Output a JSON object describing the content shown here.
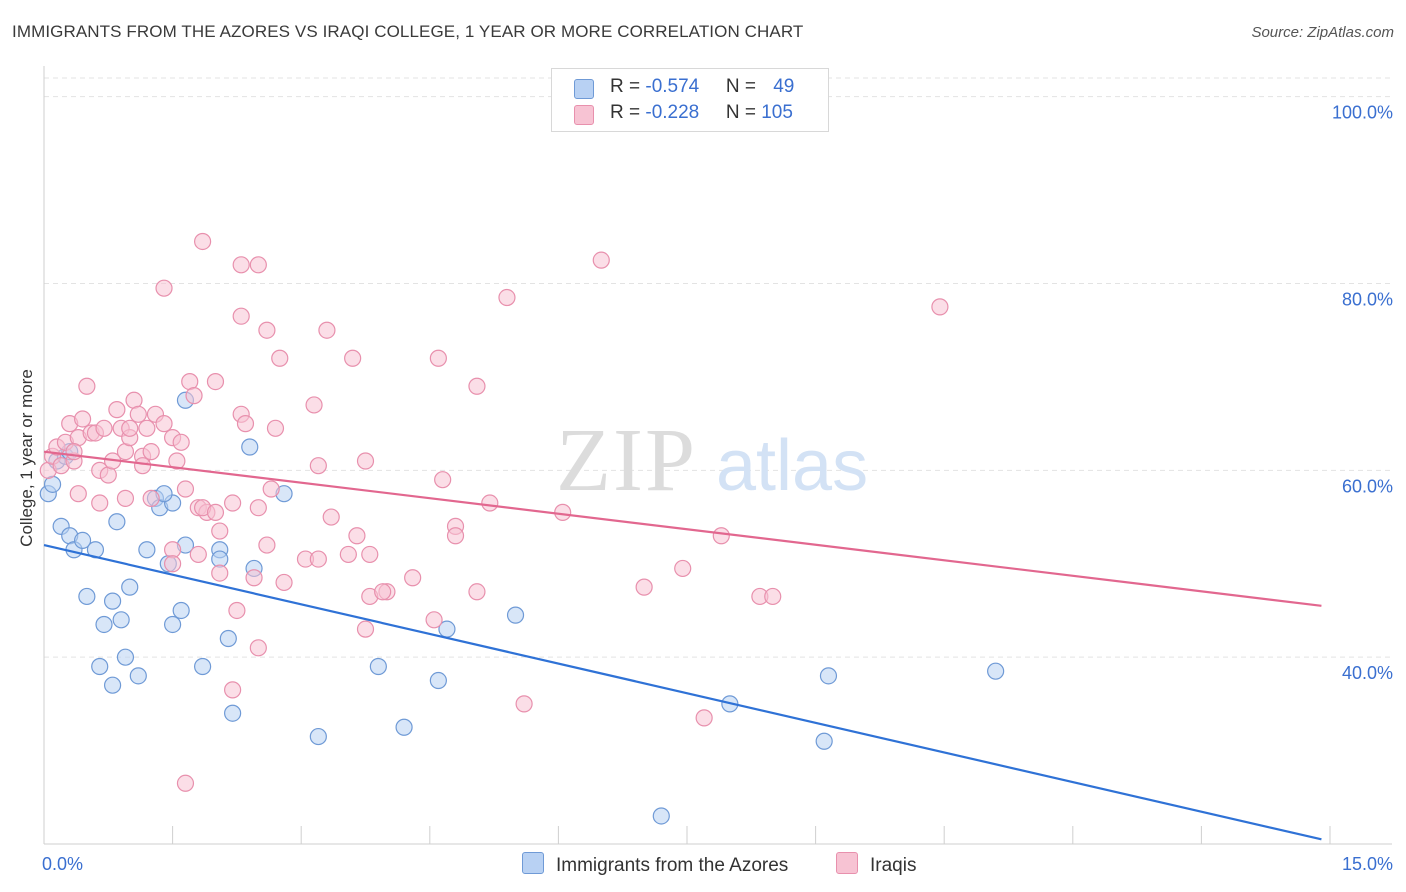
{
  "header": {
    "title": "IMMIGRANTS FROM THE AZORES VS IRAQI COLLEGE, 1 YEAR OR MORE CORRELATION CHART",
    "source": "Source: ZipAtlas.com"
  },
  "watermark": {
    "zip": "ZIP",
    "atlas": "atlas"
  },
  "legend_top": {
    "rows": [
      {
        "r_label": "R = ",
        "r_value": "-0.574",
        "n_label": "N = ",
        "n_value": "49"
      },
      {
        "r_label": "R = ",
        "r_value": "-0.228",
        "n_label": "N = ",
        "n_value": "105"
      }
    ]
  },
  "legend_bottom": {
    "items": [
      {
        "label": "Immigrants from the Azores"
      },
      {
        "label": "Iraqis"
      }
    ]
  },
  "colors": {
    "azores_fill": "#b8d1f3",
    "azores_stroke": "#6f9ad6",
    "azores_line": "#2f72d6",
    "iraqis_fill": "#f7c3d3",
    "iraqis_stroke": "#e890ad",
    "iraqis_line": "#e2678f",
    "axis_label": "#3a6fd0",
    "grid": "#e3e3e3"
  },
  "chart_data": {
    "type": "scatter",
    "title": "IMMIGRANTS FROM THE AZORES VS IRAQI COLLEGE, 1 YEAR OR MORE CORRELATION CHART",
    "xlabel": "",
    "ylabel": "College, 1 year or more",
    "xlim": [
      0,
      15
    ],
    "ylim": [
      20,
      102
    ],
    "x_tick_labels": [
      {
        "value": 0,
        "label": "0.0%"
      },
      {
        "value": 15,
        "label": "15.0%"
      }
    ],
    "y_tick_labels": [
      {
        "value": 40,
        "label": "40.0%"
      },
      {
        "value": 60,
        "label": "60.0%"
      },
      {
        "value": 80,
        "label": "80.0%"
      },
      {
        "value": 100,
        "label": "100.0%"
      }
    ],
    "grid": true,
    "legend_position": "bottom",
    "series": [
      {
        "name": "Immigrants from the Azores",
        "color_key": "azores",
        "trend": [
          [
            0,
            52.0
          ],
          [
            14.9,
            20.5
          ]
        ],
        "points": [
          [
            0.05,
            57.5
          ],
          [
            0.1,
            58.5
          ],
          [
            0.15,
            61.0
          ],
          [
            0.25,
            61.5
          ],
          [
            0.3,
            62.0
          ],
          [
            0.2,
            54.0
          ],
          [
            0.3,
            53.0
          ],
          [
            0.35,
            51.5
          ],
          [
            0.45,
            52.5
          ],
          [
            0.6,
            51.5
          ],
          [
            0.85,
            54.5
          ],
          [
            1.2,
            51.5
          ],
          [
            1.3,
            57.0
          ],
          [
            1.35,
            56.0
          ],
          [
            1.5,
            56.5
          ],
          [
            1.4,
            57.5
          ],
          [
            1.45,
            50.0
          ],
          [
            1.65,
            52.0
          ],
          [
            1.65,
            67.5
          ],
          [
            2.05,
            51.5
          ],
          [
            2.05,
            50.5
          ],
          [
            2.45,
            49.5
          ],
          [
            2.4,
            62.5
          ],
          [
            2.8,
            57.5
          ],
          [
            0.5,
            46.5
          ],
          [
            0.8,
            46.0
          ],
          [
            1.0,
            47.5
          ],
          [
            0.7,
            43.5
          ],
          [
            0.9,
            44.0
          ],
          [
            1.5,
            43.5
          ],
          [
            1.6,
            45.0
          ],
          [
            2.15,
            42.0
          ],
          [
            0.65,
            39.0
          ],
          [
            0.95,
            40.0
          ],
          [
            0.8,
            37.0
          ],
          [
            1.1,
            38.0
          ],
          [
            1.85,
            39.0
          ],
          [
            2.2,
            34.0
          ],
          [
            3.2,
            31.5
          ],
          [
            3.9,
            39.0
          ],
          [
            4.2,
            32.5
          ],
          [
            4.6,
            37.5
          ],
          [
            4.7,
            43.0
          ],
          [
            5.5,
            44.5
          ],
          [
            8.0,
            35.0
          ],
          [
            9.1,
            31.0
          ],
          [
            9.15,
            38.0
          ],
          [
            11.1,
            38.5
          ],
          [
            7.2,
            23.0
          ]
        ]
      },
      {
        "name": "Iraqis",
        "color_key": "iraqis",
        "trend": [
          [
            0,
            62.0
          ],
          [
            14.9,
            45.5
          ]
        ],
        "points": [
          [
            0.05,
            60.0
          ],
          [
            0.1,
            61.5
          ],
          [
            0.15,
            62.5
          ],
          [
            0.2,
            60.5
          ],
          [
            0.25,
            63.0
          ],
          [
            0.3,
            65.0
          ],
          [
            0.35,
            61.0
          ],
          [
            0.4,
            63.5
          ],
          [
            0.45,
            65.5
          ],
          [
            0.5,
            69.0
          ],
          [
            0.55,
            64.0
          ],
          [
            0.6,
            64.0
          ],
          [
            0.65,
            60.0
          ],
          [
            0.7,
            64.5
          ],
          [
            0.75,
            59.5
          ],
          [
            0.8,
            61.0
          ],
          [
            0.85,
            66.5
          ],
          [
            0.9,
            64.5
          ],
          [
            0.95,
            62.0
          ],
          [
            1.0,
            63.5
          ],
          [
            1.05,
            67.5
          ],
          [
            1.1,
            66.0
          ],
          [
            1.15,
            61.5
          ],
          [
            1.2,
            64.5
          ],
          [
            1.25,
            62.0
          ],
          [
            1.3,
            66.0
          ],
          [
            1.4,
            65.0
          ],
          [
            1.5,
            63.5
          ],
          [
            1.55,
            61.0
          ],
          [
            1.6,
            63.0
          ],
          [
            1.7,
            69.5
          ],
          [
            1.75,
            68.0
          ],
          [
            1.8,
            56.0
          ],
          [
            1.9,
            55.5
          ],
          [
            2.0,
            69.5
          ],
          [
            2.2,
            56.5
          ],
          [
            2.3,
            66.0
          ],
          [
            2.35,
            65.0
          ],
          [
            2.5,
            56.0
          ],
          [
            2.6,
            52.0
          ],
          [
            0.4,
            57.5
          ],
          [
            0.65,
            56.5
          ],
          [
            0.95,
            57.0
          ],
          [
            1.25,
            57.0
          ],
          [
            1.65,
            58.0
          ],
          [
            2.65,
            58.0
          ],
          [
            3.05,
            50.5
          ],
          [
            3.55,
            51.0
          ],
          [
            3.75,
            61.0
          ],
          [
            3.65,
            53.0
          ],
          [
            1.5,
            51.5
          ],
          [
            1.8,
            51.0
          ],
          [
            2.05,
            49.0
          ],
          [
            2.8,
            48.0
          ],
          [
            3.2,
            50.5
          ],
          [
            3.8,
            46.5
          ],
          [
            4.0,
            47.0
          ],
          [
            4.3,
            48.5
          ],
          [
            4.55,
            44.0
          ],
          [
            4.65,
            59.0
          ],
          [
            4.6,
            72.0
          ],
          [
            4.8,
            54.0
          ],
          [
            4.8,
            53.0
          ],
          [
            5.05,
            47.0
          ],
          [
            5.2,
            56.5
          ],
          [
            5.05,
            69.0
          ],
          [
            5.4,
            78.5
          ],
          [
            6.05,
            55.5
          ],
          [
            6.5,
            82.5
          ],
          [
            7.0,
            47.5
          ],
          [
            7.45,
            49.5
          ],
          [
            7.9,
            53.0
          ],
          [
            8.35,
            46.5
          ],
          [
            8.5,
            46.5
          ],
          [
            10.45,
            77.5
          ],
          [
            1.0,
            64.5
          ],
          [
            1.15,
            60.5
          ],
          [
            1.5,
            50.0
          ],
          [
            1.85,
            56.0
          ],
          [
            2.0,
            55.5
          ],
          [
            2.25,
            45.0
          ],
          [
            2.45,
            48.5
          ],
          [
            2.7,
            64.5
          ],
          [
            3.2,
            60.5
          ],
          [
            3.35,
            55.0
          ],
          [
            3.8,
            51.0
          ],
          [
            1.4,
            79.5
          ],
          [
            1.85,
            84.5
          ],
          [
            2.3,
            76.5
          ],
          [
            2.3,
            82.0
          ],
          [
            2.5,
            82.0
          ],
          [
            2.6,
            75.0
          ],
          [
            2.75,
            72.0
          ],
          [
            3.15,
            67.0
          ],
          [
            3.3,
            75.0
          ],
          [
            3.6,
            72.0
          ],
          [
            2.5,
            41.0
          ],
          [
            2.2,
            36.5
          ],
          [
            3.75,
            43.0
          ],
          [
            5.6,
            35.0
          ],
          [
            7.7,
            33.5
          ],
          [
            1.65,
            26.5
          ],
          [
            0.35,
            62.0
          ],
          [
            2.05,
            53.5
          ],
          [
            3.95,
            47.0
          ]
        ]
      }
    ]
  }
}
